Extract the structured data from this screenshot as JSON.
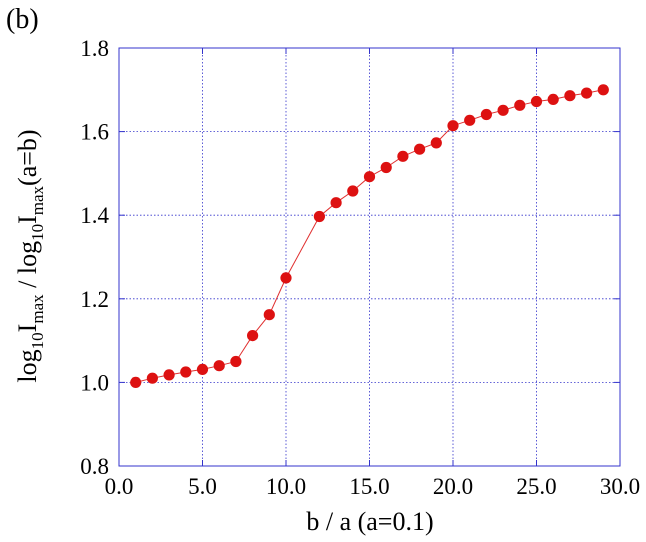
{
  "panel_label": "(b)",
  "chart_data": {
    "type": "scatter",
    "xlabel": "b / a (a=0.1)",
    "ylabel": {
      "part1": "log",
      "part1_sub": "10",
      "part2": "I",
      "part2_sub": "max",
      "part3": " / log",
      "part3_sub": "10",
      "part4": "I",
      "part4_sub": "max",
      "part5": "(a=b)"
    },
    "xlim": [
      0.0,
      30.0
    ],
    "ylim": [
      0.8,
      1.8
    ],
    "xticks": [
      0,
      5,
      10,
      15,
      20,
      25,
      30
    ],
    "xtick_labels": [
      "0.0",
      "5.0",
      "10.0",
      "15.0",
      "20.0",
      "25.0",
      "30.0"
    ],
    "yticks": [
      0.8,
      1.0,
      1.2,
      1.4,
      1.6,
      1.8
    ],
    "ytick_labels": [
      "0.8",
      "1.0",
      "1.2",
      "1.4",
      "1.6",
      "1.8"
    ],
    "grid": true,
    "grid_color": "#3333cc",
    "series_color": "#dd1111",
    "line_color": "#e03030",
    "x": [
      1,
      2,
      3,
      4,
      5,
      6,
      7,
      8,
      9,
      10,
      12,
      13,
      14,
      15,
      16,
      17,
      18,
      19,
      20,
      21,
      22,
      23,
      24,
      25,
      26,
      27,
      28,
      29
    ],
    "y": [
      1.0,
      1.01,
      1.018,
      1.025,
      1.031,
      1.04,
      1.05,
      1.112,
      1.162,
      1.25,
      1.397,
      1.43,
      1.458,
      1.492,
      1.514,
      1.541,
      1.558,
      1.573,
      1.614,
      1.627,
      1.641,
      1.651,
      1.663,
      1.672,
      1.677,
      1.686,
      1.692,
      1.7
    ]
  }
}
